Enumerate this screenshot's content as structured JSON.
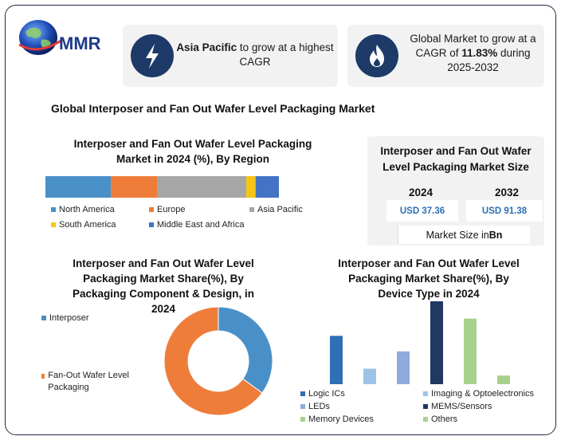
{
  "logo": {
    "text": "MMR"
  },
  "callouts": [
    {
      "bold": "Asia Pacific",
      "rest": " to grow at a highest CAGR",
      "icon": "lightning-icon"
    },
    {
      "pre": "Global Market to grow at a CAGR of ",
      "bold": "11.83%",
      "rest": " during 2025-2032",
      "icon": "flame-icon"
    }
  ],
  "main_title": "Global Interposer and Fan Out Wafer Level Packaging Market",
  "market_size": {
    "title": "Interposer and Fan Out Wafer Level Packaging Market Size",
    "years": [
      "2024",
      "2032"
    ],
    "values": [
      "USD 37.36",
      "USD 91.38"
    ],
    "unit_pre": "Market Size in ",
    "unit_bold": "Bn"
  },
  "colors": {
    "blue": "#4a90c8",
    "orange": "#ef7d3a",
    "gray": "#a6a6a6",
    "yellow": "#f5c518",
    "navy_mid": "#4472c4",
    "steel": "#2e6fb5",
    "light_blue": "#9dc3e6",
    "periwinkle": "#8faadc",
    "navy": "#1f3864",
    "green": "#a9d18e",
    "callout_circle": "#1e3a68"
  },
  "chart_data": [
    {
      "type": "bar",
      "orientation": "horizontal-stacked-100",
      "title": "Interposer and Fan Out Wafer Level Packaging Market in 2024 (%), By Region",
      "series": [
        {
          "name": "North America",
          "value": 28
        },
        {
          "name": "Europe",
          "value": 20
        },
        {
          "name": "Asia Pacific",
          "value": 38
        },
        {
          "name": "South America",
          "value": 4
        },
        {
          "name": "Middle East and Africa",
          "value": 10
        }
      ],
      "legend": "below"
    },
    {
      "type": "pie",
      "variant": "donut",
      "title": "Interposer and Fan Out Wafer Level Packaging Market Share(%), By Packaging Component & Design, in 2024",
      "slices": [
        {
          "name": "Interposer",
          "value": 35
        },
        {
          "name": "Fan-Out Wafer Level Packaging",
          "value": 65
        }
      ],
      "legend": "left"
    },
    {
      "type": "bar",
      "title": "Interposer and Fan Out Wafer Level Packaging Market Share(%), By Device Type in 2024",
      "categories": [
        "Logic ICs",
        "Imaging & Optoelectronics",
        "LEDs",
        "MEMS/Sensors",
        "Memory Devices",
        "Others"
      ],
      "values": [
        28,
        9,
        19,
        48,
        38,
        5
      ],
      "ylim": [
        0,
        48
      ],
      "legend": "below"
    }
  ]
}
